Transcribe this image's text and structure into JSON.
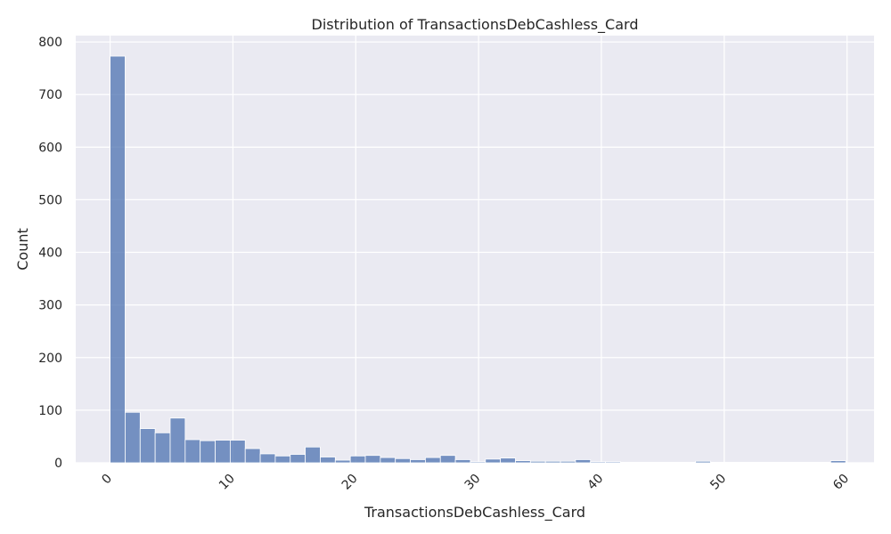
{
  "chart_data": {
    "type": "bar",
    "title": "Distribution of TransactionsDebCashless_Card",
    "xlabel": "TransactionsDebCashless_Card",
    "ylabel": "Count",
    "xlim": [
      -2.8,
      62.2
    ],
    "ylim": [
      0,
      812
    ],
    "x_ticks": [
      0,
      10,
      20,
      30,
      40,
      50,
      60
    ],
    "y_ticks": [
      0,
      100,
      200,
      300,
      400,
      500,
      600,
      700,
      800
    ],
    "bin_edges": [
      0,
      1.2222,
      2.4444,
      3.6667,
      4.8889,
      6.1111,
      7.3333,
      8.5556,
      9.7778,
      11,
      12.2222,
      13.4444,
      14.6667,
      15.8889,
      17.1111,
      18.3333,
      19.5556,
      20.7778,
      22,
      23.2222,
      24.4444,
      25.6667,
      26.8889,
      28.1111,
      29.3333,
      30.5556,
      31.7778,
      33,
      34.2222,
      35.4444,
      36.6667,
      37.8889,
      39.1111,
      40.3333,
      41.5556,
      42.7778,
      44,
      45.2222,
      46.4444,
      47.6667,
      48.8889,
      50.1111,
      51.3333,
      52.5556,
      53.7778,
      55,
      56.2222,
      57.4444,
      58.6667,
      59.8889
    ],
    "counts": [
      773,
      96,
      65,
      57,
      85,
      44,
      42,
      43,
      43,
      27,
      17,
      13,
      16,
      30,
      11,
      5,
      13,
      14,
      10,
      8,
      6,
      10,
      14,
      6,
      2,
      7,
      9,
      4,
      3,
      3,
      3,
      6,
      2,
      2,
      1,
      1,
      1,
      1,
      1,
      3,
      1,
      1,
      1,
      1,
      1,
      1,
      1,
      1,
      4
    ],
    "bar_color": "#4c72b0",
    "background_color": "#eaeaf2",
    "grid": true,
    "x_tick_rotation": -45
  }
}
